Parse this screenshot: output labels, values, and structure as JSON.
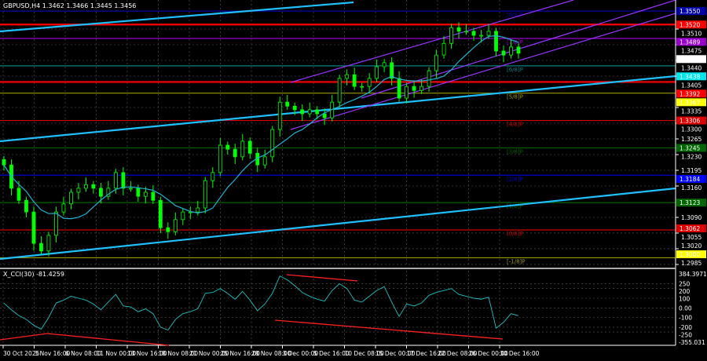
{
  "header": {
    "title": "GBPUSD,H4 1.3462 1.3466 1.3445 1.3456"
  },
  "cci_header": {
    "title": "X_CCI(30) -81.4259"
  },
  "colors": {
    "bull": "#00ff00",
    "ma": "#20b2d0",
    "trend": "#1ec0ff",
    "channel": "#9933ff",
    "grid": "#5a5a5a",
    "resistance": "#ff0000",
    "cci": "#20c0c0",
    "divergence": "#ff2020"
  },
  "chart_data": [
    {
      "type": "candlestick",
      "title": "GBPUSD,H4",
      "ylim": [
        1.2985,
        1.3575
      ],
      "y_ticks": [
        "1.3510",
        "1.3475",
        "1.3440",
        "1.3405",
        "1.3335",
        "1.3300",
        "1.3265",
        "1.3230",
        "1.3195",
        "1.3160",
        "1.3090",
        "1.3055",
        "1.3020",
        "1.2985"
      ],
      "x_ticks": [
        "30 Oct 2025",
        "3 Nov 16:00",
        "6 Nov 08:00",
        "11 Nov 00:00",
        "13 Nov 16:00",
        "18 Nov 08:00",
        "21 Nov 00:00",
        "25 Nov 16:00",
        "28 Nov 08:00",
        "3 Dec 00:00",
        "5 Dec 16:00",
        "10 Dec 08:00",
        "15 Dec 00:00",
        "17 Dec 16:00",
        "22 Dec 08:00",
        "26 Dec 00:00",
        "30 Dec 16:00"
      ],
      "close": [
        1.3207,
        1.3155,
        1.3128,
        1.3102,
        1.3032,
        1.3015,
        1.305,
        1.3102,
        1.312,
        1.3146,
        1.3155,
        1.3163,
        1.3155,
        1.3137,
        1.3155,
        1.319,
        1.3155,
        1.3155,
        1.3137,
        1.3146,
        1.3128,
        1.3067,
        1.3058,
        1.3085,
        1.3102,
        1.3102,
        1.3111,
        1.3172,
        1.319,
        1.3251,
        1.3242,
        1.3225,
        1.326,
        1.3233,
        1.3207,
        1.3225,
        1.3286,
        1.3347,
        1.3338,
        1.333,
        1.3321,
        1.333,
        1.3321,
        1.3312,
        1.3347,
        1.34,
        1.3408,
        1.3382,
        1.3382,
        1.34,
        1.3426,
        1.3435,
        1.34,
        1.3356,
        1.3382,
        1.3373,
        1.3382,
        1.3417,
        1.3452,
        1.3478,
        1.3513,
        1.3505,
        1.3505,
        1.3496,
        1.3496,
        1.3505,
        1.3461,
        1.3452,
        1.347,
        1.3456
      ],
      "price_labels": [
        {
          "value": "1.3550",
          "price": 1.355,
          "bg": "#0000aa",
          "fg": "#ffffff"
        },
        {
          "value": "1.3520",
          "price": 1.352,
          "bg": "#ff0000",
          "fg": "#ffffff"
        },
        {
          "value": "1.3489",
          "price": 1.3489,
          "bg": "#9900cc",
          "fg": "#ffffff"
        },
        {
          "value": "1.3456",
          "price": 1.3456,
          "bg": "#ffffff",
          "fg": "#000000"
        },
        {
          "value": "1.3438",
          "price": 1.3438,
          "bg": "#00e5ee",
          "fg": "#000000"
        },
        {
          "value": "1.3392",
          "price": 1.3392,
          "bg": "#ff0000",
          "fg": "#ffffff"
        },
        {
          "value": "1.3367",
          "price": 1.3367,
          "bg": "#ffff00",
          "fg": "#000000"
        },
        {
          "value": "1.3306",
          "price": 1.3306,
          "bg": "#dd0000",
          "fg": "#ffffff"
        },
        {
          "value": "1.3245",
          "price": 1.3245,
          "bg": "#006600",
          "fg": "#ffffff"
        },
        {
          "value": "1.3184",
          "price": 1.3184,
          "bg": "#0000ff",
          "fg": "#ffffff"
        },
        {
          "value": "1.3123",
          "price": 1.3123,
          "bg": "#006600",
          "fg": "#ffffff"
        },
        {
          "value": "1.3062",
          "price": 1.3062,
          "bg": "#dd0000",
          "fg": "#ffffff"
        },
        {
          "value": "1.3000",
          "price": 1.3,
          "bg": "#ffff00",
          "fg": "#000000"
        }
      ],
      "murrey_levels": [
        {
          "label": "[8/8]P",
          "price": 1.355,
          "color": "#0000aa"
        },
        {
          "label": "[7/8]P",
          "price": 1.3489,
          "color": "#9900cc"
        },
        {
          "label": "[6/8]P",
          "price": 1.3428,
          "color": "#008080"
        },
        {
          "label": "[5/8]P",
          "price": 1.3367,
          "color": "#999900"
        },
        {
          "label": "[4/8]P",
          "price": 1.3306,
          "color": "#cc0000"
        },
        {
          "label": "[3/8]P",
          "price": 1.3245,
          "color": "#006600"
        },
        {
          "label": "[2/8]P",
          "price": 1.3184,
          "color": "#0000cc"
        },
        {
          "label": "[1/8]P",
          "price": 1.3123,
          "color": "#006600"
        },
        {
          "label": "[0/8]P",
          "price": 1.3062,
          "color": "#cc0000"
        },
        {
          "label": "[-1/8]P",
          "price": 1.3,
          "color": "#999900"
        }
      ],
      "resistance_levels": [
        1.352,
        1.3392
      ],
      "moving_average_period": 20
    },
    {
      "type": "line",
      "title": "X_CCI(30) -81.4259",
      "ylim": [
        -355.031,
        384.3971
      ],
      "y_ticks": [
        "384.3971",
        "250",
        "200",
        "100",
        "0.00",
        "-100",
        "-200",
        "-250",
        "-355.031"
      ],
      "values": [
        50,
        -20,
        -80,
        -120,
        -180,
        -220,
        -100,
        50,
        80,
        120,
        100,
        80,
        40,
        -20,
        60,
        140,
        20,
        10,
        -40,
        -10,
        -60,
        -200,
        -230,
        -120,
        -60,
        -40,
        -10,
        150,
        160,
        200,
        150,
        90,
        170,
        80,
        -30,
        40,
        150,
        330,
        290,
        230,
        160,
        120,
        90,
        70,
        180,
        250,
        200,
        80,
        60,
        120,
        180,
        220,
        60,
        -90,
        40,
        20,
        50,
        130,
        160,
        180,
        200,
        140,
        120,
        100,
        90,
        110,
        -210,
        -150,
        -60,
        -81
      ]
    }
  ]
}
